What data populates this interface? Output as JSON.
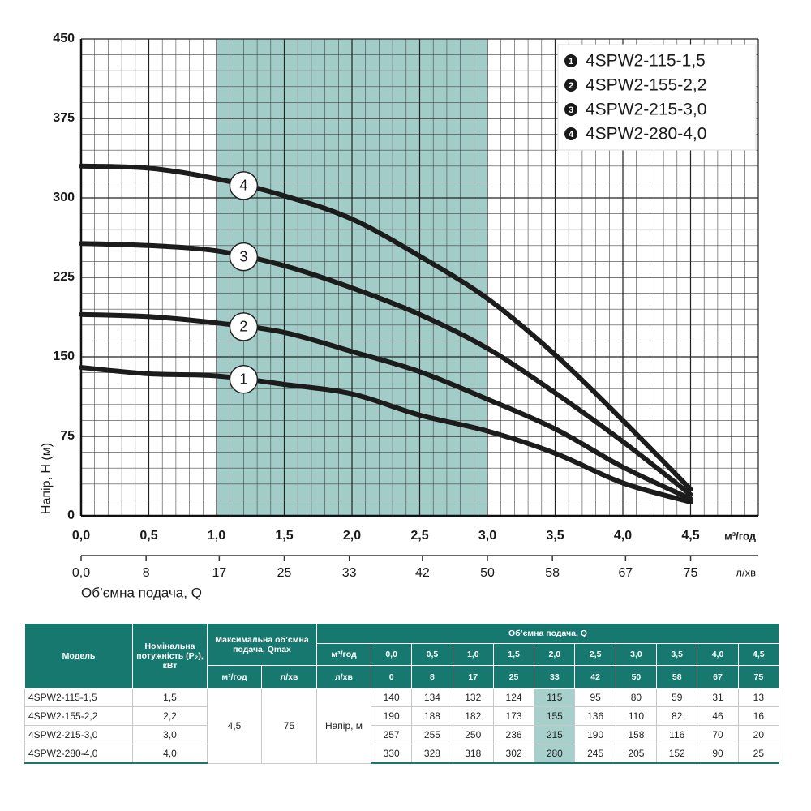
{
  "chart_data": {
    "type": "line",
    "y_label": "Напір, H (м)",
    "x_label": "Об’ємна подача, Q",
    "x_unit": "м³/год",
    "x2_unit": "л/хв",
    "x": [
      0,
      0.5,
      1.0,
      1.5,
      2.0,
      2.5,
      3.0,
      3.5,
      4.0,
      4.5
    ],
    "series": [
      {
        "name": "4SPW2-115-1,5",
        "label": "1",
        "color": "#1c1c1c",
        "values": [
          140,
          134,
          132,
          124,
          115,
          95,
          80,
          59,
          31,
          13
        ]
      },
      {
        "name": "4SPW2-155-2,2",
        "label": "2",
        "color": "#1c1c1c",
        "values": [
          190,
          188,
          182,
          173,
          155,
          136,
          110,
          82,
          46,
          16
        ]
      },
      {
        "name": "4SPW2-215-3,0",
        "label": "3",
        "color": "#1c1c1c",
        "values": [
          257,
          255,
          250,
          236,
          215,
          190,
          158,
          116,
          70,
          20
        ]
      },
      {
        "name": "4SPW2-280-4,0",
        "label": "4",
        "color": "#1c1c1c",
        "values": [
          330,
          328,
          318,
          302,
          280,
          245,
          205,
          152,
          90,
          25
        ]
      }
    ],
    "xlim": [
      0,
      5
    ],
    "xticks": [
      {
        "value": 0,
        "label": "0,0"
      },
      {
        "value": 0.5,
        "label": "0,5"
      },
      {
        "value": 1.0,
        "label": "1,0"
      },
      {
        "value": 1.5,
        "label": "1,5"
      },
      {
        "value": 2.0,
        "label": "2,0"
      },
      {
        "value": 2.5,
        "label": "2,5"
      },
      {
        "value": 3.0,
        "label": "3,0"
      },
      {
        "value": 3.5,
        "label": "3,5"
      },
      {
        "value": 4.0,
        "label": "4,0"
      },
      {
        "value": 4.5,
        "label": "4,5"
      }
    ],
    "ylim": [
      0,
      450
    ],
    "yticks": [
      0,
      75,
      150,
      225,
      300,
      375,
      450
    ],
    "x2lim": [
      0,
      83.33
    ],
    "x2ticks": [
      {
        "value": 0,
        "label": "0,0"
      },
      8,
      17,
      25,
      33,
      42,
      50,
      58,
      67,
      75
    ],
    "highlight": [
      1.0,
      3.0
    ],
    "highlight_color": "#9dc9c4",
    "grid": true,
    "legend": "upper right"
  },
  "table": {
    "model_header": "Модель",
    "power_header": "Номінальна потужність (P₂), кВт",
    "qmax_header": "Максимальна об’ємна подача, Qmax",
    "qmax_units": [
      "м³/год",
      "л/хв"
    ],
    "flow_header": "Об’ємна подача, Q",
    "flow_units": [
      "м³/год",
      "л/хв"
    ],
    "flow_m3": [
      "0,0",
      "0,5",
      "1,0",
      "1,5",
      "2,0",
      "2,5",
      "3,0",
      "3,5",
      "4,0",
      "4,5"
    ],
    "flow_l": [
      "0",
      "8",
      "17",
      "25",
      "33",
      "42",
      "50",
      "58",
      "67",
      "75"
    ],
    "qmax_m3": "4,5",
    "qmax_l": "75",
    "head_label": "Напір, м",
    "rows": [
      {
        "model": "4SPW2-115-1,5",
        "power": "1,5",
        "values": [
          140,
          134,
          132,
          124,
          115,
          95,
          80,
          59,
          31,
          13
        ]
      },
      {
        "model": "4SPW2-155-2,2",
        "power": "2,2",
        "values": [
          190,
          188,
          182,
          173,
          155,
          136,
          110,
          82,
          46,
          16
        ]
      },
      {
        "model": "4SPW2-215-3,0",
        "power": "3,0",
        "values": [
          257,
          255,
          250,
          236,
          215,
          190,
          158,
          116,
          70,
          20
        ]
      },
      {
        "model": "4SPW2-280-4,0",
        "power": "4,0",
        "values": [
          330,
          328,
          318,
          302,
          280,
          245,
          205,
          152,
          90,
          25
        ]
      }
    ]
  }
}
